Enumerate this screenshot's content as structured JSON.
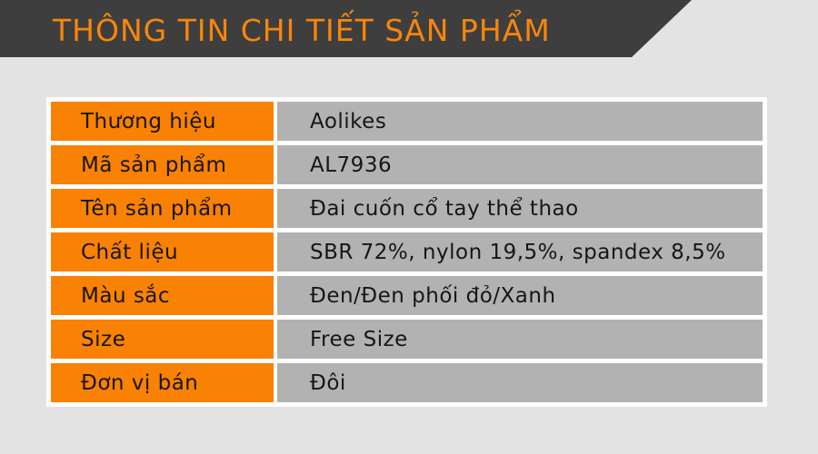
{
  "header": {
    "title": "THÔNG TIN CHI TIẾT SẢN PHẨM"
  },
  "colors": {
    "banner_dark": "#3E3E3E",
    "accent_orange": "#F8860B",
    "cell_orange": "#F98103",
    "cell_gray": "#B2B2B2",
    "page_bg": "#E3E3E3",
    "grid_white": "#FFFFFF",
    "text_dark": "#161616"
  },
  "spec_table": {
    "rows": [
      {
        "label": "Thương hiệu",
        "value": "Aolikes"
      },
      {
        "label": "Mã sản phẩm",
        "value": "AL7936"
      },
      {
        "label": "Tên sản phẩm",
        "value": "Đai cuốn cổ tay thể thao"
      },
      {
        "label": "Chất liệu",
        "value": "SBR 72%, nylon 19,5%, spandex 8,5%"
      },
      {
        "label": "Màu sắc",
        "value": "Đen/Đen phối đỏ/Xanh"
      },
      {
        "label": "Size",
        "value": "Free Size"
      },
      {
        "label": "Đơn vị bán",
        "value": "Đôi"
      }
    ]
  }
}
